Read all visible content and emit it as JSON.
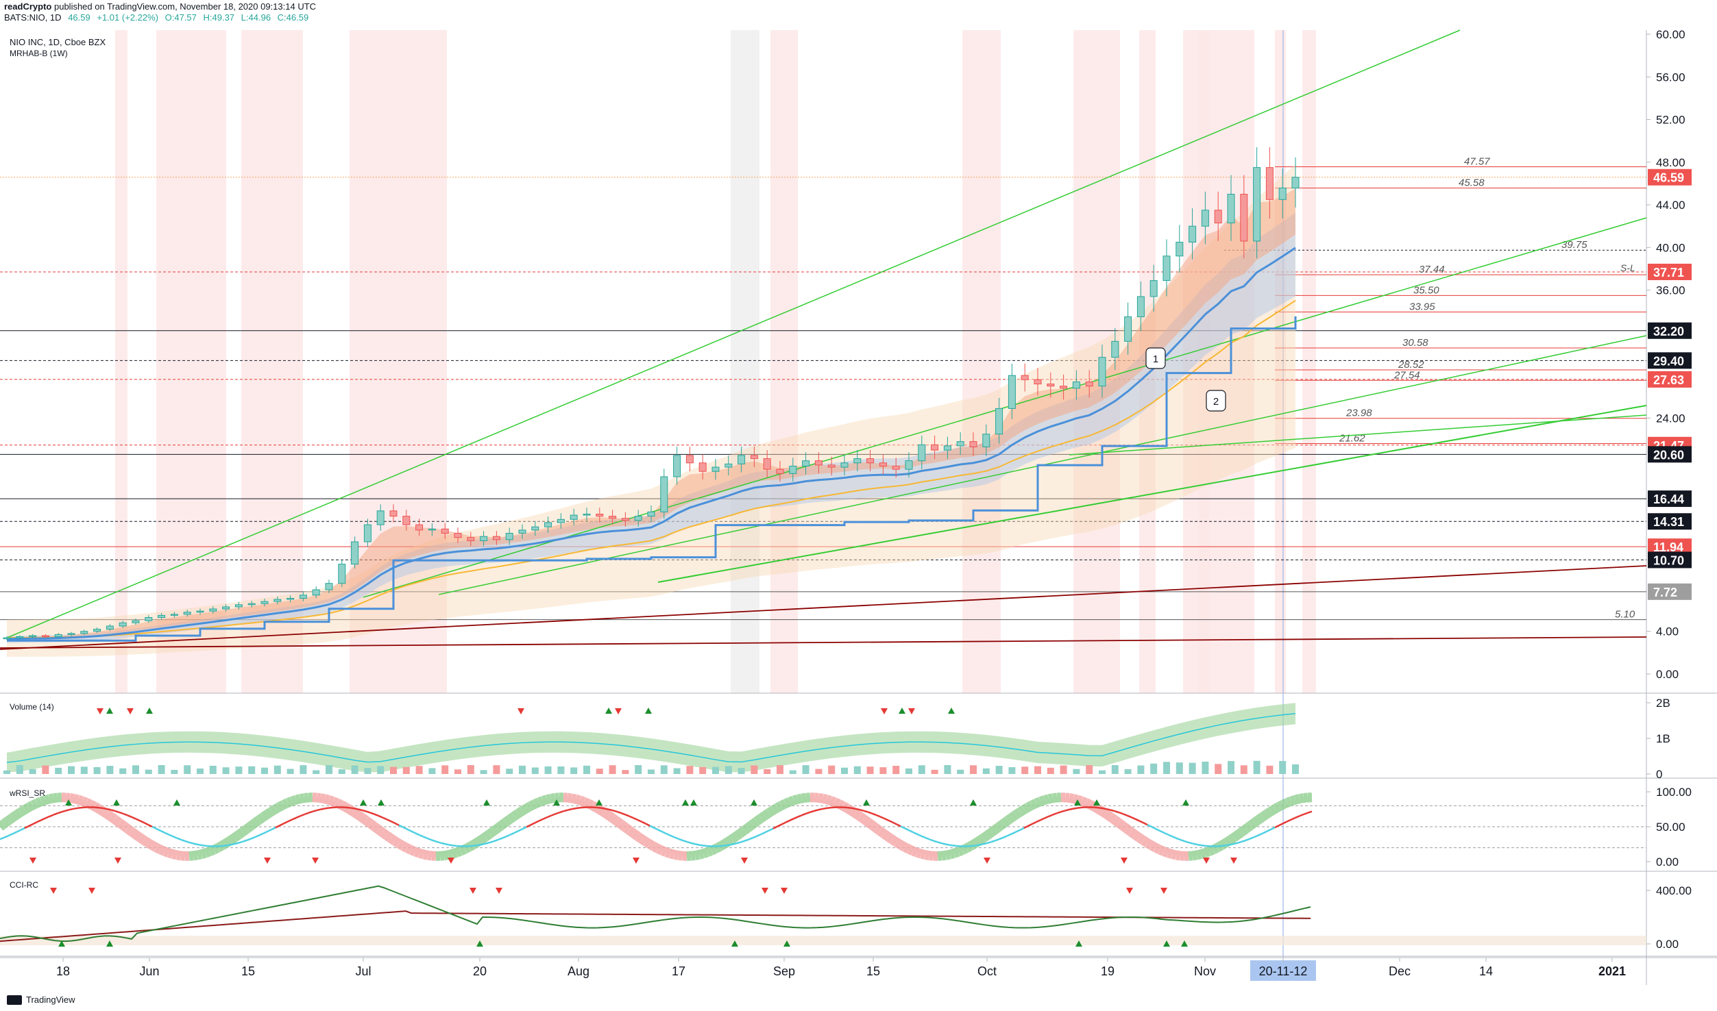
{
  "header": {
    "publisher": "readCrypto",
    "published_text": "published on TradingView.com, November 18, 2020 09:13:14 UTC",
    "symbol": "BATS:NIO, 1D",
    "last": "46.59",
    "change": "+1.01 (+2.22%)",
    "open": "O:47.57",
    "high": "H:49.37",
    "low": "L:44.96",
    "close": "C:46.59"
  },
  "footer": {
    "brand": "TradingView"
  },
  "colors": {
    "up": "#26a69a",
    "down": "#ef5350",
    "ema_fast": "#f4a582",
    "blue": "#4a90d9",
    "orange": "#f7b733",
    "green_line": "#33cc33",
    "maroon": "#8b0000",
    "bg_red": "#fde8e8"
  },
  "chart_data": [
    {
      "type": "candlestick",
      "title": "NIO INC, 1D, Cboe BZX",
      "subtitle": "MRHAB-B (1W)",
      "x_labels": [
        "18",
        "Jun",
        "15",
        "Jul",
        "20",
        "Aug",
        "17",
        "Sep",
        "15",
        "Oct",
        "19",
        "Nov",
        "20-11-12",
        "Dec",
        "14",
        "2021"
      ],
      "ylim": [
        -1,
        60
      ],
      "y_ticks": [
        "60.00",
        "56.00",
        "52.00",
        "48.00",
        "44.00",
        "40.00",
        "36.00",
        "32.20",
        "29.40",
        "27.63",
        "24.00",
        "21.47",
        "20.60",
        "16.44",
        "14.31",
        "11.94",
        "10.70",
        "7.72",
        "4.00",
        "0.00"
      ],
      "close_prices": [
        3.4,
        3.5,
        3.6,
        3.5,
        3.7,
        3.8,
        4.0,
        4.2,
        4.5,
        4.8,
        5.0,
        5.3,
        5.5,
        5.6,
        5.8,
        5.9,
        6.1,
        6.3,
        6.5,
        6.6,
        6.8,
        7.0,
        7.1,
        7.4,
        7.9,
        8.5,
        10.3,
        12.4,
        14.0,
        15.3,
        14.8,
        14.0,
        13.5,
        13.6,
        13.2,
        12.8,
        12.5,
        12.9,
        12.6,
        13.2,
        13.5,
        13.8,
        14.2,
        14.5,
        14.9,
        15.0,
        14.8,
        14.6,
        14.4,
        14.8,
        15.2,
        18.5,
        20.5,
        19.8,
        19.0,
        19.4,
        19.7,
        20.5,
        20.2,
        19.2,
        18.8,
        19.5,
        20.0,
        19.6,
        19.4,
        19.8,
        20.2,
        19.8,
        19.5,
        19.2,
        20.0,
        21.5,
        21.0,
        21.4,
        21.8,
        21.3,
        22.5,
        24.9,
        28.0,
        27.6,
        27.2,
        27.0,
        26.8,
        27.4,
        27.0,
        29.7,
        31.2,
        33.5,
        35.4,
        36.9,
        39.2,
        40.5,
        42.0,
        43.5,
        42.3,
        45.0,
        40.6,
        47.5,
        44.5,
        45.58,
        46.59
      ],
      "horizontal_levels": [
        {
          "label": "47.57",
          "value": 47.57
        },
        {
          "label": "45.58",
          "value": 45.58
        },
        {
          "label": "39.75",
          "value": 39.75
        },
        {
          "label": "37.44",
          "value": 37.44
        },
        {
          "label": "35.50",
          "value": 35.5
        },
        {
          "label": "33.95",
          "value": 33.95
        },
        {
          "label": "30.58",
          "value": 30.58
        },
        {
          "label": "28.52",
          "value": 28.52
        },
        {
          "label": "27.54",
          "value": 27.54
        },
        {
          "label": "23.98",
          "value": 23.98
        },
        {
          "label": "21.62",
          "value": 21.62
        },
        {
          "label": "5.10",
          "value": 5.1
        }
      ],
      "price_tags": [
        {
          "label": "46.59",
          "value": 46.59,
          "color": "#ef5350"
        },
        {
          "label": "37.71",
          "value": 37.71,
          "color": "#ef5350"
        },
        {
          "label": "32.20",
          "value": 32.2,
          "color": "#131722"
        },
        {
          "label": "29.40",
          "value": 29.4,
          "color": "#131722"
        },
        {
          "label": "27.63",
          "value": 27.63,
          "color": "#ef5350"
        },
        {
          "label": "21.47",
          "value": 21.47,
          "color": "#ef5350"
        },
        {
          "label": "20.60",
          "value": 20.6,
          "color": "#131722"
        },
        {
          "label": "16.44",
          "value": 16.44,
          "color": "#131722"
        },
        {
          "label": "14.31",
          "value": 14.31,
          "color": "#131722"
        },
        {
          "label": "11.94",
          "value": 11.94,
          "color": "#ef5350"
        },
        {
          "label": "10.70",
          "value": 10.7,
          "color": "#131722"
        },
        {
          "label": "7.72",
          "value": 7.72,
          "color": "#9e9e9e"
        }
      ],
      "annotations": [
        "1",
        "2",
        "S-L"
      ]
    },
    {
      "type": "bar",
      "title": "Volume (14)",
      "y_ticks": [
        "2B",
        "1B",
        "0"
      ]
    },
    {
      "type": "line",
      "title": "wRSI_SR",
      "y_ticks": [
        "100.00",
        "50.00",
        "0.00"
      ],
      "ylim": [
        0,
        100
      ]
    },
    {
      "type": "line",
      "title": "CCI-RC",
      "y_ticks": [
        "400.00",
        "0.00"
      ]
    }
  ]
}
